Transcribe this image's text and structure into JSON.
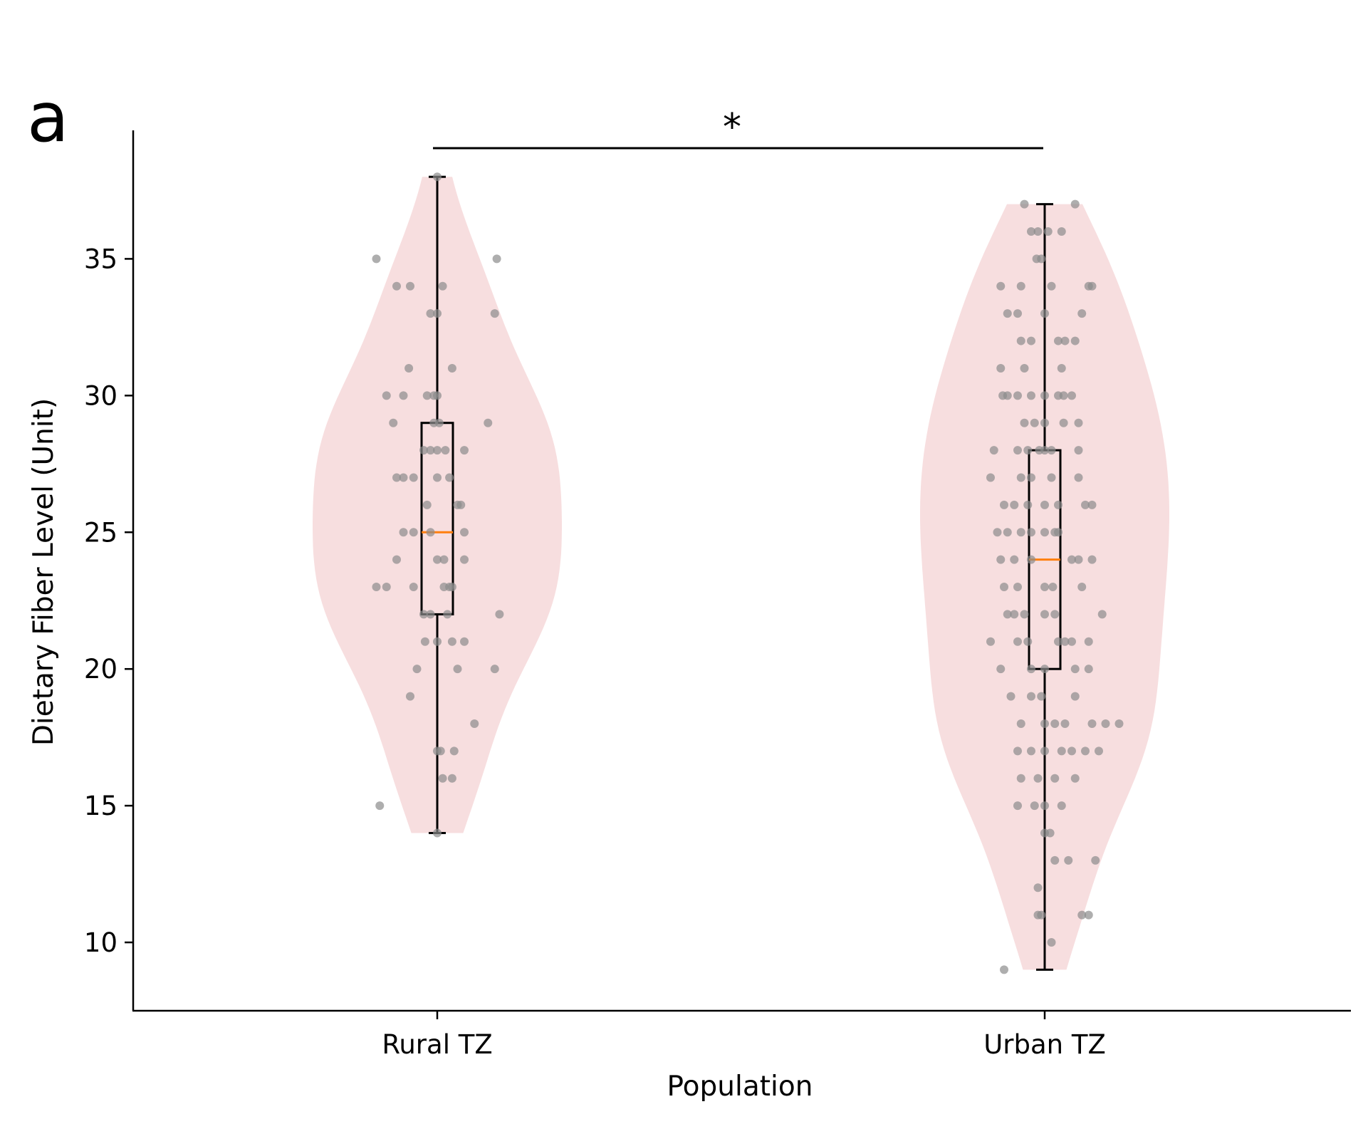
{
  "panel_label": "a",
  "chart_data": {
    "type": "violin",
    "xlabel": "Population",
    "ylabel": "Dietary Fiber Level (Unit)",
    "ylim": [
      7.5,
      39.7
    ],
    "y_ticks": [
      10,
      15,
      20,
      25,
      30,
      35
    ],
    "categories": [
      "Rural TZ",
      "Urban TZ"
    ],
    "colors": {
      "violin_fill": "#f7dcdd",
      "points": "#8c8c8c",
      "box": "#000000",
      "median": "#ff7f0e"
    },
    "significance": {
      "label": "*",
      "between": [
        "Rural TZ",
        "Urban TZ"
      ]
    },
    "groups": [
      {
        "name": "Rural TZ",
        "box": {
          "min": 14,
          "q1": 22,
          "median": 25,
          "q3": 29,
          "max": 38
        },
        "points": [
          [
            0.0,
            38
          ],
          [
            0.88,
            35
          ],
          [
            -0.9,
            35
          ],
          [
            0.85,
            33
          ],
          [
            -0.1,
            33
          ],
          [
            0.0,
            33
          ],
          [
            0.08,
            34
          ],
          [
            -0.4,
            34
          ],
          [
            -0.6,
            34
          ],
          [
            0.75,
            29
          ],
          [
            -0.05,
            29
          ],
          [
            -0.65,
            29
          ],
          [
            0.03,
            29
          ],
          [
            0.22,
            31
          ],
          [
            -0.42,
            31
          ],
          [
            -0.75,
            30
          ],
          [
            -0.5,
            30
          ],
          [
            -0.15,
            30
          ],
          [
            -0.05,
            30
          ],
          [
            0.0,
            30
          ],
          [
            0.12,
            28
          ],
          [
            0.4,
            28
          ],
          [
            0.0,
            28
          ],
          [
            -0.1,
            28
          ],
          [
            -0.2,
            28
          ],
          [
            -0.35,
            27
          ],
          [
            0.18,
            27
          ],
          [
            -0.6,
            27
          ],
          [
            -0.5,
            27
          ],
          [
            0.0,
            27
          ],
          [
            0.3,
            26
          ],
          [
            0.35,
            26
          ],
          [
            -0.15,
            26
          ],
          [
            0.4,
            25
          ],
          [
            -0.35,
            25
          ],
          [
            -0.1,
            25
          ],
          [
            -0.5,
            25
          ],
          [
            0.1,
            24
          ],
          [
            0.0,
            24
          ],
          [
            0.4,
            24
          ],
          [
            -0.6,
            24
          ],
          [
            0.92,
            22
          ],
          [
            0.18,
            23
          ],
          [
            0.22,
            23
          ],
          [
            0.1,
            23
          ],
          [
            -0.75,
            23
          ],
          [
            -0.35,
            23
          ],
          [
            -0.9,
            23
          ],
          [
            -0.2,
            22
          ],
          [
            -0.1,
            22
          ],
          [
            0.15,
            22
          ],
          [
            0.22,
            21
          ],
          [
            -0.18,
            21
          ],
          [
            0.0,
            21
          ],
          [
            0.4,
            21
          ],
          [
            0.3,
            20
          ],
          [
            -0.3,
            20
          ],
          [
            0.85,
            20
          ],
          [
            -0.4,
            19
          ],
          [
            0.55,
            18
          ],
          [
            0.0,
            17
          ],
          [
            0.25,
            17
          ],
          [
            0.05,
            17
          ],
          [
            0.08,
            16
          ],
          [
            0.22,
            16
          ],
          [
            -0.85,
            15
          ],
          [
            0.0,
            14
          ]
        ]
      },
      {
        "name": "Urban TZ",
        "box": {
          "min": 9,
          "q1": 20,
          "median": 24,
          "q3": 28,
          "max": 37
        },
        "points": [
          [
            -0.3,
            37
          ],
          [
            0.45,
            37
          ],
          [
            -0.1,
            36
          ],
          [
            0.05,
            36
          ],
          [
            -0.2,
            36
          ],
          [
            0.25,
            36
          ],
          [
            -0.12,
            35
          ],
          [
            -0.05,
            35
          ],
          [
            0.65,
            34
          ],
          [
            -0.35,
            34
          ],
          [
            0.1,
            34
          ],
          [
            -0.65,
            34
          ],
          [
            0.7,
            34
          ],
          [
            -0.4,
            33
          ],
          [
            0.0,
            33
          ],
          [
            -0.55,
            33
          ],
          [
            0.55,
            33
          ],
          [
            -0.2,
            32
          ],
          [
            0.2,
            32
          ],
          [
            0.3,
            32
          ],
          [
            0.45,
            32
          ],
          [
            -0.35,
            32
          ],
          [
            0.25,
            31
          ],
          [
            -0.65,
            31
          ],
          [
            -0.3,
            31
          ],
          [
            -0.62,
            30
          ],
          [
            -0.55,
            30
          ],
          [
            -0.4,
            30
          ],
          [
            -0.2,
            30
          ],
          [
            0.2,
            30
          ],
          [
            0.28,
            30
          ],
          [
            0.4,
            30
          ],
          [
            0.0,
            30
          ],
          [
            -0.3,
            29
          ],
          [
            0.0,
            29
          ],
          [
            0.28,
            29
          ],
          [
            0.5,
            29
          ],
          [
            -0.15,
            29
          ],
          [
            -0.75,
            28
          ],
          [
            -0.4,
            28
          ],
          [
            -0.25,
            28
          ],
          [
            -0.08,
            28
          ],
          [
            0.0,
            28
          ],
          [
            0.1,
            28
          ],
          [
            0.5,
            28
          ],
          [
            -0.8,
            27
          ],
          [
            -0.35,
            27
          ],
          [
            -0.2,
            27
          ],
          [
            0.1,
            27
          ],
          [
            0.5,
            27
          ],
          [
            -0.45,
            26
          ],
          [
            -0.25,
            26
          ],
          [
            0.0,
            26
          ],
          [
            0.2,
            26
          ],
          [
            0.6,
            26
          ],
          [
            0.7,
            26
          ],
          [
            -0.6,
            26
          ],
          [
            -0.7,
            25
          ],
          [
            -0.55,
            25
          ],
          [
            -0.35,
            25
          ],
          [
            -0.2,
            25
          ],
          [
            0.0,
            25
          ],
          [
            0.15,
            25
          ],
          [
            0.2,
            25
          ],
          [
            -0.65,
            24
          ],
          [
            -0.45,
            24
          ],
          [
            -0.2,
            24
          ],
          [
            0.4,
            24
          ],
          [
            0.5,
            24
          ],
          [
            0.7,
            24
          ],
          [
            -0.4,
            23
          ],
          [
            0.0,
            23
          ],
          [
            0.12,
            23
          ],
          [
            0.55,
            23
          ],
          [
            -0.6,
            23
          ],
          [
            -0.55,
            22
          ],
          [
            -0.3,
            22
          ],
          [
            0.0,
            22
          ],
          [
            0.15,
            22
          ],
          [
            0.85,
            22
          ],
          [
            -0.45,
            22
          ],
          [
            -0.8,
            21
          ],
          [
            -0.4,
            21
          ],
          [
            -0.25,
            21
          ],
          [
            0.2,
            21
          ],
          [
            0.3,
            21
          ],
          [
            0.4,
            21
          ],
          [
            0.65,
            21
          ],
          [
            -0.2,
            20
          ],
          [
            0.0,
            20
          ],
          [
            0.45,
            20
          ],
          [
            -0.65,
            20
          ],
          [
            0.65,
            20
          ],
          [
            -0.5,
            19
          ],
          [
            -0.2,
            19
          ],
          [
            -0.05,
            19
          ],
          [
            0.45,
            19
          ],
          [
            -0.35,
            18
          ],
          [
            0.0,
            18
          ],
          [
            0.15,
            18
          ],
          [
            0.3,
            18
          ],
          [
            0.7,
            18
          ],
          [
            0.9,
            18
          ],
          [
            1.1,
            18
          ],
          [
            -0.4,
            17
          ],
          [
            -0.2,
            17
          ],
          [
            0.0,
            17
          ],
          [
            0.25,
            17
          ],
          [
            0.4,
            17
          ],
          [
            0.6,
            17
          ],
          [
            0.8,
            17
          ],
          [
            -0.35,
            16
          ],
          [
            -0.1,
            16
          ],
          [
            0.15,
            16
          ],
          [
            0.45,
            16
          ],
          [
            -0.4,
            15
          ],
          [
            -0.15,
            15
          ],
          [
            0.0,
            15
          ],
          [
            0.25,
            15
          ],
          [
            0.0,
            14
          ],
          [
            0.08,
            14
          ],
          [
            0.15,
            13
          ],
          [
            0.35,
            13
          ],
          [
            0.75,
            13
          ],
          [
            -0.1,
            12
          ],
          [
            -0.1,
            11
          ],
          [
            -0.05,
            11
          ],
          [
            0.55,
            11
          ],
          [
            0.65,
            11
          ],
          [
            0.1,
            10
          ],
          [
            -0.6,
            9
          ]
        ]
      }
    ]
  }
}
